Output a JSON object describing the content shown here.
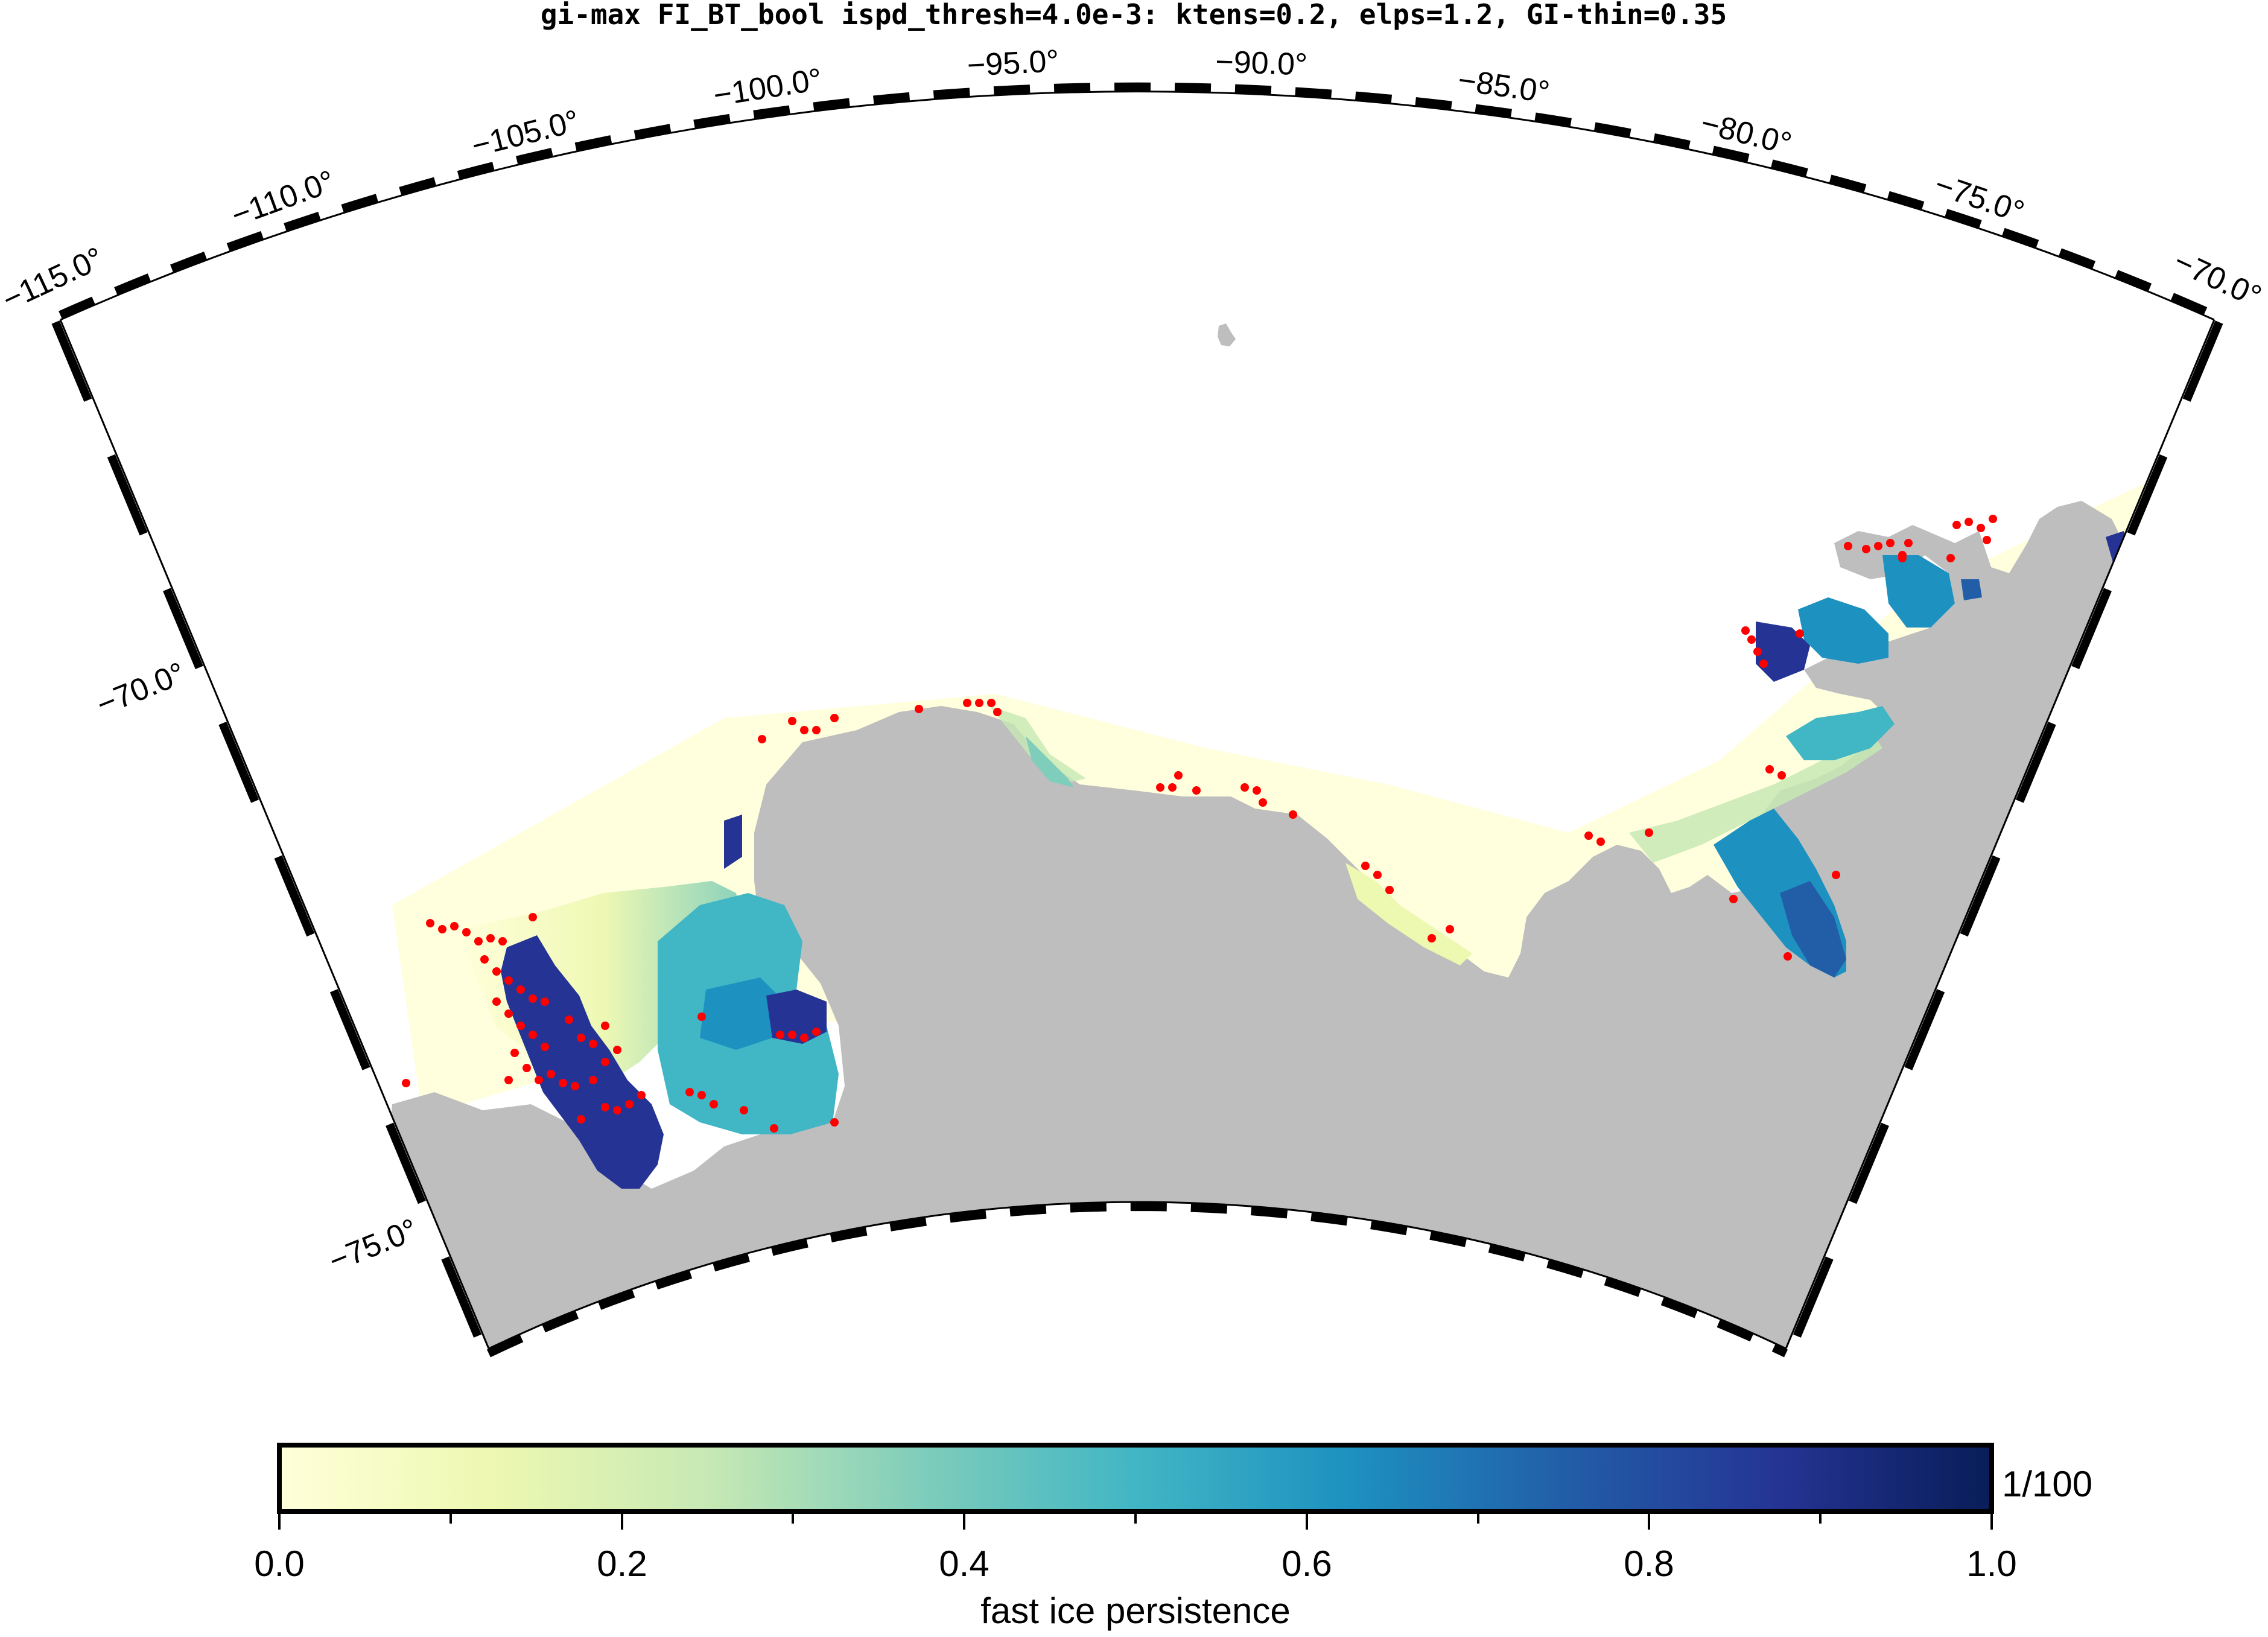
{
  "title": "gi-max FI_BT_bool ispd_thresh=4.0e-3: ktens=0.2, elps=1.2, GI-thin=0.35",
  "map": {
    "longitude_labels": [
      "−115.0°",
      "−110.0°",
      "−105.0°",
      "−100.0°",
      "−95.0°",
      "−90.0°",
      "−85.0°",
      "−80.0°",
      "−75.0°",
      "−70.0°"
    ],
    "latitude_labels": [
      "−70.0°",
      "−75.0°"
    ],
    "land_color": "#bebebe",
    "grounded_iceberg_marker_color": "#ff0000"
  },
  "colorbar": {
    "label": "fast ice persistence",
    "unit_label": "1/100",
    "tick_labels": [
      "0.0",
      "0.2",
      "0.4",
      "0.6",
      "0.8",
      "1.0"
    ],
    "range": [
      0.0,
      1.0
    ],
    "colors": [
      "#ffffd9",
      "#edf8b1",
      "#c7e9b4",
      "#7fcdbb",
      "#41b6c4",
      "#1d91c0",
      "#225ea8",
      "#253494",
      "#081d58"
    ]
  }
}
